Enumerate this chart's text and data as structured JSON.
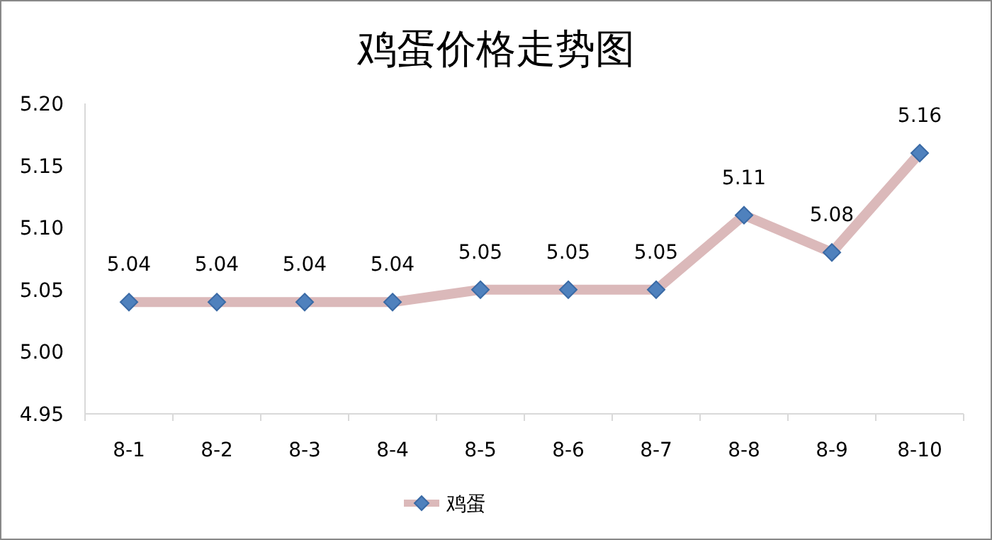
{
  "chart_data": {
    "type": "line",
    "title": "鸡蛋价格走势图",
    "categories": [
      "8-1",
      "8-2",
      "8-3",
      "8-4",
      "8-5",
      "8-6",
      "8-7",
      "8-8",
      "8-9",
      "8-10"
    ],
    "series": [
      {
        "name": "鸡蛋",
        "color": "#dbb9ba",
        "colors": [
          "#4f81bd",
          "#4f81bd",
          "#4f81bd",
          "#4f81bd",
          "#4f81bd",
          "#4f81bd",
          "#4f81bd",
          "#4f81bd",
          "#4f81bd",
          "#4f81bd"
        ],
        "values": [
          5.04,
          5.04,
          5.04,
          5.04,
          5.05,
          5.05,
          5.05,
          5.11,
          5.08,
          5.16
        ]
      }
    ],
    "ylim": [
      4.95,
      5.2
    ],
    "yticks": [
      "4.95",
      "5.00",
      "5.05",
      "5.10",
      "5.15",
      "5.20"
    ],
    "marker": "diamond",
    "data_labels": true,
    "legend": "bottom",
    "grid": false
  }
}
